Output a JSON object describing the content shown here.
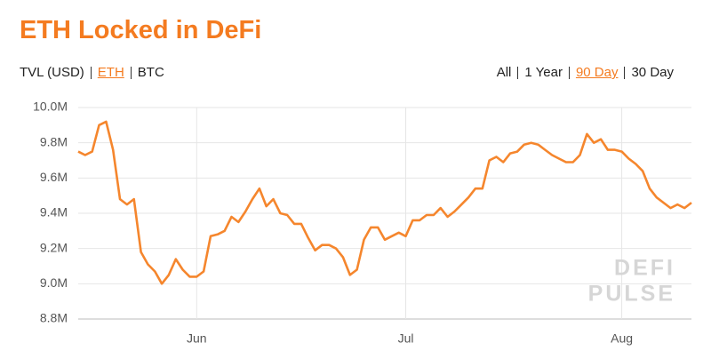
{
  "tabs": {
    "metric": [
      "TVL (USD)",
      "ETH",
      "BTC"
    ],
    "active_metric": 1,
    "range": [
      "All",
      "1 Year",
      "90 Day",
      "30 Day"
    ],
    "active_range": 2
  },
  "chart_data": {
    "type": "line",
    "title": "ETH Locked in DeFi",
    "color": "#f5862d",
    "grid": true,
    "watermark": [
      "DEFI",
      "PULSE"
    ],
    "categories": [
      null,
      null,
      null,
      null,
      null,
      null,
      null,
      null,
      null,
      null,
      null,
      null,
      null,
      null,
      null,
      null,
      null,
      "Jun",
      null,
      null,
      null,
      null,
      null,
      null,
      null,
      null,
      null,
      null,
      null,
      null,
      null,
      null,
      null,
      null,
      null,
      null,
      null,
      null,
      null,
      null,
      null,
      null,
      null,
      null,
      null,
      null,
      null,
      "Jul",
      null,
      null,
      null,
      null,
      null,
      null,
      null,
      null,
      null,
      null,
      null,
      null,
      null,
      null,
      null,
      null,
      null,
      null,
      null,
      null,
      null,
      null,
      null,
      null,
      null,
      null,
      null,
      null,
      null,
      null,
      "Aug",
      null,
      null,
      null,
      null,
      null,
      null,
      null,
      null,
      null,
      null
    ],
    "values": [
      9.75,
      9.73,
      9.75,
      9.9,
      9.92,
      9.76,
      9.48,
      9.45,
      9.48,
      9.18,
      9.11,
      9.07,
      9.0,
      9.05,
      9.14,
      9.08,
      9.04,
      9.04,
      9.07,
      9.27,
      9.28,
      9.3,
      9.38,
      9.35,
      9.41,
      9.48,
      9.54,
      9.44,
      9.48,
      9.4,
      9.39,
      9.34,
      9.34,
      9.26,
      9.19,
      9.22,
      9.22,
      9.2,
      9.15,
      9.05,
      9.08,
      9.25,
      9.32,
      9.32,
      9.25,
      9.27,
      9.29,
      9.27,
      9.36,
      9.36,
      9.39,
      9.39,
      9.43,
      9.38,
      9.41,
      9.45,
      9.49,
      9.54,
      9.54,
      9.7,
      9.72,
      9.69,
      9.74,
      9.75,
      9.79,
      9.8,
      9.79,
      9.76,
      9.73,
      9.71,
      9.69,
      9.69,
      9.73,
      9.85,
      9.8,
      9.82,
      9.76,
      9.76,
      9.75,
      9.71,
      9.68,
      9.64,
      9.54,
      9.49,
      9.46,
      9.43,
      9.45,
      9.43,
      9.46
    ],
    "ylim": [
      8.8,
      10.0
    ],
    "yticks": [
      {
        "value": 8.8,
        "label": "8.8M"
      },
      {
        "value": 9.0,
        "label": "9.0M"
      },
      {
        "value": 9.2,
        "label": "9.2M"
      },
      {
        "value": 9.4,
        "label": "9.4M"
      },
      {
        "value": 9.6,
        "label": "9.6M"
      },
      {
        "value": 9.8,
        "label": "9.8M"
      },
      {
        "value": 10.0,
        "label": "10.0M"
      }
    ]
  }
}
